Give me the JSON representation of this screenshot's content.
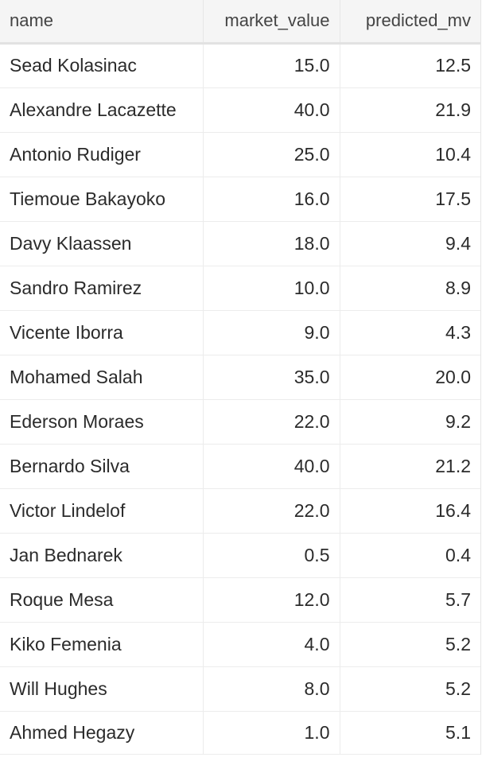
{
  "table": {
    "columns": [
      "name",
      "market_value",
      "predicted_mv"
    ],
    "rows": [
      [
        "Sead Kolasinac",
        "15.0",
        "12.5"
      ],
      [
        "Alexandre Lacazette",
        "40.0",
        "21.9"
      ],
      [
        "Antonio Rudiger",
        "25.0",
        "10.4"
      ],
      [
        "Tiemoue Bakayoko",
        "16.0",
        "17.5"
      ],
      [
        "Davy Klaassen",
        "18.0",
        "9.4"
      ],
      [
        "Sandro Ramirez",
        "10.0",
        "8.9"
      ],
      [
        "Vicente Iborra",
        "9.0",
        "4.3"
      ],
      [
        "Mohamed Salah",
        "35.0",
        "20.0"
      ],
      [
        "Ederson Moraes",
        "22.0",
        "9.2"
      ],
      [
        "Bernardo Silva",
        "40.0",
        "21.2"
      ],
      [
        "Victor Lindelof",
        "22.0",
        "16.4"
      ],
      [
        "Jan Bednarek",
        "0.5",
        "0.4"
      ],
      [
        "Roque Mesa",
        "12.0",
        "5.7"
      ],
      [
        "Kiko Femenia",
        "4.0",
        "5.2"
      ],
      [
        "Will Hughes",
        "8.0",
        "5.2"
      ],
      [
        "Ahmed Hegazy",
        "1.0",
        "5.1"
      ]
    ]
  }
}
